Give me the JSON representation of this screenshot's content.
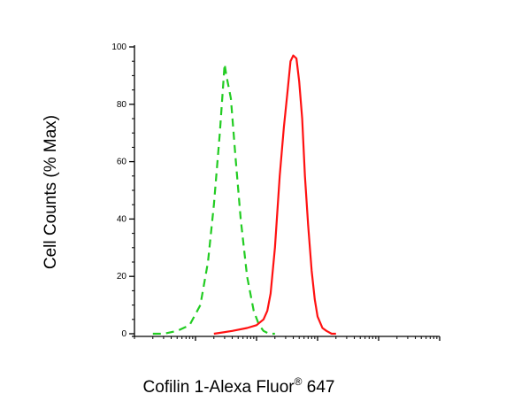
{
  "chart_data": {
    "type": "line",
    "ylabel": "Cell Counts (% Max)",
    "xlabel": {
      "main": "Cofilin 1-Alexa Fluor",
      "superscript": "®",
      "suffix": " 647"
    },
    "x_scale": "log",
    "ylim": [
      0,
      100
    ],
    "yticks": [
      "0",
      "20",
      "40",
      "60",
      "80",
      "100"
    ],
    "xlim": [
      1,
      100000
    ],
    "grid": false,
    "series": [
      {
        "style": "dashed",
        "color": "#22cc22",
        "x": [
          2,
          3,
          5,
          8,
          12,
          16,
          20,
          25,
          28,
          30,
          32,
          35,
          38,
          45,
          55,
          70,
          90,
          110,
          130,
          150,
          170,
          200
        ],
        "y": [
          0,
          0,
          1,
          3,
          10,
          25,
          45,
          70,
          85,
          94,
          90,
          86,
          82,
          62,
          40,
          20,
          8,
          3,
          1,
          0.3,
          0,
          0
        ]
      },
      {
        "style": "solid",
        "color": "#ff1111",
        "x": [
          20,
          40,
          70,
          100,
          130,
          150,
          170,
          200,
          240,
          280,
          320,
          360,
          400,
          450,
          500,
          560,
          620,
          700,
          800,
          900,
          1000,
          1200,
          1400,
          1700,
          2000
        ],
        "y": [
          0,
          1,
          2,
          3,
          5,
          8,
          14,
          30,
          55,
          72,
          84,
          95,
          97,
          96,
          88,
          75,
          55,
          38,
          22,
          12,
          6,
          2,
          1,
          0,
          0
        ]
      }
    ]
  }
}
